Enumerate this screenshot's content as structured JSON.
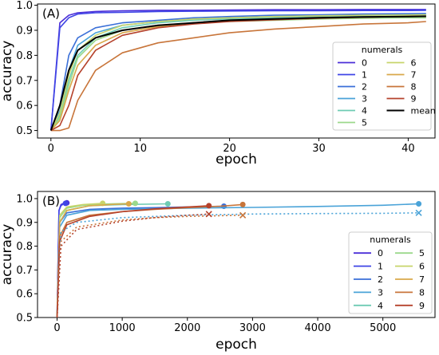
{
  "chart_data": [
    {
      "panel_label": "(A)",
      "type": "line",
      "xlabel": "epoch",
      "ylabel": "accuracy",
      "xlim": [
        -1.5,
        43
      ],
      "ylim": [
        0.47,
        1.005
      ],
      "xticks": [
        0,
        10,
        20,
        30,
        40
      ],
      "yticks": [
        0.5,
        0.6,
        0.7,
        0.8,
        0.9,
        1.0
      ],
      "legend": {
        "title": "numerals",
        "position": "lower-right",
        "columns": 2
      },
      "series": [
        {
          "name": "0",
          "color": "#4b2fd8",
          "x": [
            0,
            1,
            2,
            3,
            5,
            8,
            12,
            16,
            20,
            25,
            30,
            35,
            40,
            42
          ],
          "y": [
            0.5,
            0.93,
            0.96,
            0.97,
            0.975,
            0.978,
            0.98,
            0.98,
            0.981,
            0.982,
            0.982,
            0.983,
            0.983,
            0.983
          ]
        },
        {
          "name": "1",
          "color": "#3f45e6",
          "x": [
            0,
            1,
            2,
            3,
            5,
            8,
            12,
            16,
            20,
            25,
            30,
            35,
            40,
            42
          ],
          "y": [
            0.5,
            0.91,
            0.95,
            0.965,
            0.97,
            0.972,
            0.975,
            0.976,
            0.977,
            0.978,
            0.978,
            0.979,
            0.979,
            0.98
          ]
        },
        {
          "name": "2",
          "color": "#3a6fd8",
          "x": [
            0,
            1,
            2,
            3,
            5,
            8,
            12,
            16,
            20,
            25,
            30,
            35,
            40,
            42
          ],
          "y": [
            0.5,
            0.6,
            0.8,
            0.87,
            0.91,
            0.93,
            0.94,
            0.95,
            0.955,
            0.96,
            0.962,
            0.965,
            0.966,
            0.967
          ]
        },
        {
          "name": "3",
          "color": "#4aa3d8",
          "x": [
            0,
            1,
            2,
            3,
            5,
            8,
            12,
            16,
            20,
            25,
            30,
            35,
            40,
            42
          ],
          "y": [
            0.5,
            0.58,
            0.74,
            0.84,
            0.89,
            0.92,
            0.935,
            0.945,
            0.95,
            0.955,
            0.958,
            0.96,
            0.962,
            0.962
          ]
        },
        {
          "name": "4",
          "color": "#6ecbb3",
          "x": [
            0,
            1,
            2,
            3,
            5,
            8,
            12,
            16,
            20,
            25,
            30,
            35,
            40,
            42
          ],
          "y": [
            0.5,
            0.56,
            0.7,
            0.8,
            0.87,
            0.91,
            0.93,
            0.94,
            0.945,
            0.95,
            0.953,
            0.955,
            0.956,
            0.957
          ]
        },
        {
          "name": "5",
          "color": "#9bd98b",
          "x": [
            0,
            1,
            2,
            3,
            5,
            8,
            12,
            16,
            20,
            25,
            30,
            35,
            40,
            42
          ],
          "y": [
            0.5,
            0.55,
            0.68,
            0.79,
            0.86,
            0.9,
            0.92,
            0.93,
            0.935,
            0.94,
            0.945,
            0.948,
            0.95,
            0.95
          ]
        },
        {
          "name": "6",
          "color": "#c7d46a",
          "x": [
            0,
            1,
            2,
            3,
            5,
            8,
            12,
            16,
            20,
            25,
            30,
            35,
            40,
            42
          ],
          "y": [
            0.5,
            0.57,
            0.72,
            0.82,
            0.88,
            0.92,
            0.935,
            0.945,
            0.95,
            0.955,
            0.958,
            0.96,
            0.961,
            0.962
          ]
        },
        {
          "name": "7",
          "color": "#d9a84a",
          "x": [
            0,
            1,
            2,
            3,
            5,
            8,
            12,
            16,
            20,
            25,
            30,
            35,
            40,
            42
          ],
          "y": [
            0.5,
            0.54,
            0.66,
            0.76,
            0.84,
            0.89,
            0.915,
            0.93,
            0.94,
            0.945,
            0.95,
            0.952,
            0.955,
            0.955
          ]
        },
        {
          "name": "8",
          "color": "#c8753a",
          "x": [
            0,
            1,
            2,
            3,
            5,
            8,
            12,
            16,
            20,
            25,
            30,
            35,
            40,
            42
          ],
          "y": [
            0.5,
            0.5,
            0.51,
            0.62,
            0.74,
            0.81,
            0.85,
            0.87,
            0.89,
            0.905,
            0.915,
            0.925,
            0.93,
            0.935
          ]
        },
        {
          "name": "9",
          "color": "#b5422c",
          "x": [
            0,
            1,
            2,
            3,
            5,
            8,
            12,
            16,
            20,
            25,
            30,
            35,
            40,
            42
          ],
          "y": [
            0.5,
            0.52,
            0.6,
            0.72,
            0.82,
            0.88,
            0.91,
            0.925,
            0.935,
            0.942,
            0.948,
            0.952,
            0.955,
            0.956
          ]
        },
        {
          "name": "mean",
          "color": "#000000",
          "x": [
            0,
            1,
            2,
            3,
            5,
            8,
            12,
            16,
            20,
            25,
            30,
            35,
            40,
            42
          ],
          "y": [
            0.5,
            0.6,
            0.74,
            0.82,
            0.87,
            0.9,
            0.92,
            0.93,
            0.94,
            0.945,
            0.95,
            0.953,
            0.955,
            0.956
          ]
        }
      ]
    },
    {
      "panel_label": "(B)",
      "type": "line",
      "xlabel": "epoch",
      "ylabel": "accuracy",
      "xlim": [
        -300,
        5800
      ],
      "ylim": [
        0.5,
        1.03
      ],
      "xticks": [
        0,
        1000,
        2000,
        3000,
        4000,
        5000
      ],
      "yticks": [
        0.5,
        0.6,
        0.7,
        0.8,
        0.9,
        1.0
      ],
      "legend": {
        "title": "numerals",
        "position": "lower-right",
        "columns": 2
      },
      "series": [
        {
          "name": "0",
          "color": "#4b2fd8",
          "x": [
            0,
            30,
            60,
            100,
            150
          ],
          "y": [
            0.5,
            0.95,
            0.975,
            0.98,
            0.982
          ],
          "end_marker": "circle"
        },
        {
          "name": "1",
          "color": "#3f45e6",
          "x": [
            0,
            30,
            60,
            100,
            130
          ],
          "y": [
            0.5,
            0.95,
            0.97,
            0.978,
            0.98
          ],
          "end_marker": "circle"
        },
        {
          "name": "2",
          "color": "#3a6fd8",
          "x": [
            0,
            40,
            150,
            500,
            1000,
            1500,
            2000,
            2560
          ],
          "y": [
            0.5,
            0.9,
            0.94,
            0.955,
            0.96,
            0.962,
            0.965,
            0.968
          ],
          "end_marker": "circle"
        },
        {
          "name": "3",
          "color": "#4aa3d8",
          "x": [
            0,
            40,
            150,
            500,
            1000,
            2000,
            3000,
            4000,
            5000,
            5550
          ],
          "y": [
            0.5,
            0.88,
            0.93,
            0.95,
            0.955,
            0.96,
            0.963,
            0.967,
            0.972,
            0.978
          ],
          "end_marker": "circle"
        },
        {
          "name": "4",
          "color": "#6ecbb3",
          "x": [
            0,
            40,
            150,
            500,
            1000,
            1700
          ],
          "y": [
            0.5,
            0.9,
            0.95,
            0.97,
            0.975,
            0.978
          ],
          "end_marker": "circle"
        },
        {
          "name": "5",
          "color": "#9bd98b",
          "x": [
            0,
            40,
            150,
            400,
            700,
            1000,
            1200
          ],
          "y": [
            0.5,
            0.92,
            0.96,
            0.972,
            0.977,
            0.979,
            0.98
          ],
          "end_marker": "circle"
        },
        {
          "name": "6",
          "color": "#c7d46a",
          "x": [
            0,
            40,
            150,
            400,
            700
          ],
          "y": [
            0.5,
            0.93,
            0.965,
            0.975,
            0.98
          ],
          "end_marker": "circle"
        },
        {
          "name": "7",
          "color": "#d9a84a",
          "x": [
            0,
            40,
            150,
            500,
            900,
            1100
          ],
          "y": [
            0.5,
            0.9,
            0.95,
            0.97,
            0.976,
            0.978
          ],
          "end_marker": "circle"
        },
        {
          "name": "8",
          "color": "#c8753a",
          "x": [
            0,
            40,
            150,
            500,
            1000,
            1500,
            2000,
            2500,
            2850
          ],
          "y": [
            0.5,
            0.84,
            0.9,
            0.93,
            0.945,
            0.955,
            0.962,
            0.968,
            0.975
          ],
          "end_marker": "circle"
        },
        {
          "name": "9",
          "color": "#b5422c",
          "x": [
            0,
            40,
            150,
            500,
            1000,
            1500,
            2000,
            2330
          ],
          "y": [
            0.5,
            0.82,
            0.89,
            0.925,
            0.945,
            0.957,
            0.965,
            0.97
          ],
          "end_marker": "circle"
        },
        {
          "name": "3 (dotted)",
          "color": "#4aa3d8",
          "dashed": true,
          "x": [
            0,
            60,
            300,
            1000,
            2000,
            3000,
            4000,
            5000,
            5550
          ],
          "y": [
            0.5,
            0.86,
            0.9,
            0.92,
            0.93,
            0.935,
            0.937,
            0.938,
            0.94
          ],
          "end_marker": "x"
        },
        {
          "name": "8 (dotted)",
          "color": "#c8753a",
          "dashed": true,
          "x": [
            0,
            60,
            300,
            1000,
            1500,
            2000,
            2500,
            2850
          ],
          "y": [
            0.5,
            0.82,
            0.88,
            0.91,
            0.92,
            0.925,
            0.928,
            0.93
          ],
          "end_marker": "x"
        },
        {
          "name": "9 (dotted)",
          "color": "#b5422c",
          "dashed": true,
          "x": [
            0,
            60,
            300,
            1000,
            1500,
            2000,
            2330
          ],
          "y": [
            0.5,
            0.8,
            0.87,
            0.905,
            0.92,
            0.93,
            0.935
          ],
          "end_marker": "x"
        }
      ]
    }
  ]
}
